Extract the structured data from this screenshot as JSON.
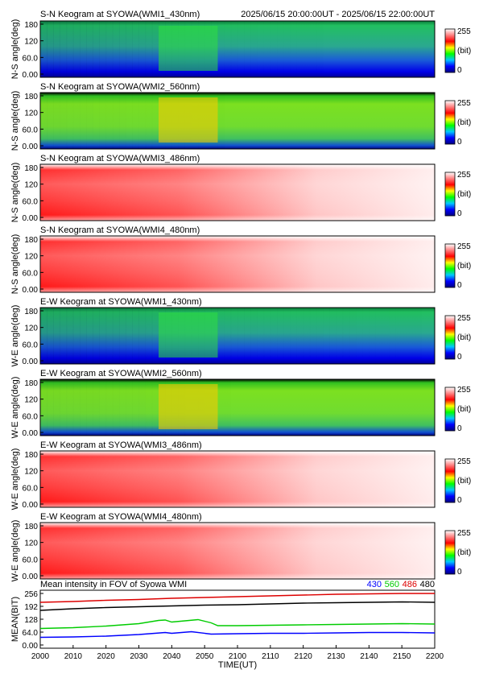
{
  "header": {
    "time_range": "2025/06/15 20:00:00UT - 2025/06/15 22:00:00UT"
  },
  "colors": {
    "scale": [
      "#000080",
      "#0000ff",
      "#00c8ff",
      "#00ff00",
      "#ffff00",
      "#ff0000",
      "#ff8080",
      "#ffffff"
    ],
    "series_430": "#0000ff",
    "series_560": "#00cc00",
    "series_486": "#dd0000",
    "series_480": "#000000"
  },
  "chart_data": [
    {
      "type": "heatmap",
      "title": "S-N Keogram at SYOWA(WMI1_430nm)",
      "ylabel": "N-S angle(deg)",
      "yticks": [
        "180",
        "120",
        "60.0",
        "0.00"
      ],
      "ylim": [
        0,
        180
      ],
      "colorbar": {
        "max": "255",
        "unit": "(bit)",
        "min": "0"
      },
      "profile": "blue",
      "level": [
        0.42,
        0.58,
        0.62
      ],
      "burst": 0.12
    },
    {
      "type": "heatmap",
      "title": "S-N Keogram at SYOWA(WMI2_560nm)",
      "ylabel": "N-S angle(deg)",
      "yticks": [
        "180",
        "120",
        "60.0",
        "0.00"
      ],
      "ylim": [
        0,
        180
      ],
      "colorbar": {
        "max": "255",
        "unit": "(bit)",
        "min": "0"
      },
      "profile": "green",
      "level": [
        0.56,
        0.6,
        0.6
      ],
      "burst": 0.1
    },
    {
      "type": "heatmap",
      "title": "S-N Keogram at SYOWA(WMI3_486nm)",
      "ylabel": "N-S angle(deg)",
      "yticks": [
        "180",
        "120",
        "60.0",
        "0.00"
      ],
      "ylim": [
        0,
        180
      ],
      "colorbar": {
        "max": "255",
        "unit": "(bit)",
        "min": "0"
      },
      "profile": "red",
      "level": [
        0.84,
        0.92,
        0.98
      ],
      "burst": 0.0
    },
    {
      "type": "heatmap",
      "title": "S-N Keogram at SYOWA(WMI4_480nm)",
      "ylabel": "N-S angle(deg)",
      "yticks": [
        "180",
        "120",
        "60.0",
        "0.00"
      ],
      "ylim": [
        0,
        180
      ],
      "colorbar": {
        "max": "255",
        "unit": "(bit)",
        "min": "0"
      },
      "profile": "red",
      "level": [
        0.86,
        0.93,
        0.98
      ],
      "burst": 0.0
    },
    {
      "type": "heatmap",
      "title": "E-W Keogram at SYOWA(WMI1_430nm)",
      "ylabel": "W-E angle(deg)",
      "yticks": [
        "180",
        "120",
        "60.0",
        "0.00"
      ],
      "ylim": [
        0,
        180
      ],
      "colorbar": {
        "max": "255",
        "unit": "(bit)",
        "min": "0"
      },
      "profile": "blue",
      "level": [
        0.42,
        0.56,
        0.6
      ],
      "burst": 0.12
    },
    {
      "type": "heatmap",
      "title": "E-W Keogram at SYOWA(WMI2_560nm)",
      "ylabel": "W-E angle(deg)",
      "yticks": [
        "180",
        "120",
        "60.0",
        "0.00"
      ],
      "ylim": [
        0,
        180
      ],
      "colorbar": {
        "max": "255",
        "unit": "(bit)",
        "min": "0"
      },
      "profile": "green",
      "level": [
        0.54,
        0.6,
        0.62
      ],
      "burst": 0.12
    },
    {
      "type": "heatmap",
      "title": "E-W Keogram at SYOWA(WMI3_486nm)",
      "ylabel": "W-E angle(deg)",
      "yticks": [
        "180",
        "120",
        "60.0",
        "0.00"
      ],
      "ylim": [
        0,
        180
      ],
      "colorbar": {
        "max": "255",
        "unit": "(bit)",
        "min": "0"
      },
      "profile": "red",
      "level": [
        0.8,
        0.9,
        0.97
      ],
      "burst": 0.0
    },
    {
      "type": "heatmap",
      "title": "E-W Keogram at SYOWA(WMI4_480nm)",
      "ylabel": "W-E angle(deg)",
      "yticks": [
        "180",
        "120",
        "60.0",
        "0.00"
      ],
      "ylim": [
        0,
        180
      ],
      "colorbar": {
        "max": "255",
        "unit": "(bit)",
        "min": "0"
      },
      "profile": "red",
      "level": [
        0.82,
        0.9,
        0.96
      ],
      "burst": 0.0
    },
    {
      "type": "line",
      "title": "Mean intensity in FOV of Syowa WMI",
      "ylabel": "MEAN(BIT)",
      "xlabel": "TIME(UT)",
      "yticks": [
        "256",
        "192",
        "128",
        "64.0",
        "0.00"
      ],
      "ylim": [
        0,
        256
      ],
      "x": [
        "2000",
        "2010",
        "2020",
        "2030",
        "2040",
        "2050",
        "2100",
        "2110",
        "2120",
        "2130",
        "2140",
        "2150",
        "2200"
      ],
      "legend": [
        "430",
        "560",
        "486",
        "480"
      ],
      "series": [
        {
          "name": "486",
          "color": "#dd0000",
          "points": [
            [
              0,
              212
            ],
            [
              10,
              216
            ],
            [
              20,
              222
            ],
            [
              30,
              226
            ],
            [
              40,
              232
            ],
            [
              50,
              236
            ],
            [
              60,
              240
            ],
            [
              70,
              244
            ],
            [
              80,
              248
            ],
            [
              90,
              252
            ],
            [
              100,
              254
            ],
            [
              110,
              256
            ],
            [
              120,
              256
            ]
          ]
        },
        {
          "name": "480",
          "color": "#000000",
          "points": [
            [
              0,
              172
            ],
            [
              10,
              180
            ],
            [
              20,
              186
            ],
            [
              30,
              190
            ],
            [
              40,
              194
            ],
            [
              50,
              198
            ],
            [
              60,
              200
            ],
            [
              70,
              204
            ],
            [
              80,
              208
            ],
            [
              90,
              210
            ],
            [
              100,
              212
            ],
            [
              110,
              214
            ],
            [
              120,
              212
            ]
          ]
        },
        {
          "name": "560",
          "color": "#00cc00",
          "points": [
            [
              0,
              82
            ],
            [
              10,
              86
            ],
            [
              20,
              94
            ],
            [
              30,
              106
            ],
            [
              36,
              122
            ],
            [
              38,
              124
            ],
            [
              40,
              114
            ],
            [
              44,
              120
            ],
            [
              48,
              126
            ],
            [
              52,
              110
            ],
            [
              54,
              96
            ],
            [
              60,
              96
            ],
            [
              70,
              98
            ],
            [
              80,
              100
            ],
            [
              90,
              102
            ],
            [
              100,
              104
            ],
            [
              110,
              106
            ],
            [
              120,
              104
            ]
          ]
        },
        {
          "name": "430",
          "color": "#0000ff",
          "points": [
            [
              0,
              38
            ],
            [
              10,
              40
            ],
            [
              20,
              44
            ],
            [
              30,
              52
            ],
            [
              38,
              62
            ],
            [
              40,
              58
            ],
            [
              46,
              66
            ],
            [
              52,
              54
            ],
            [
              60,
              56
            ],
            [
              70,
              58
            ],
            [
              80,
              58
            ],
            [
              90,
              60
            ],
            [
              100,
              62
            ],
            [
              110,
              62
            ],
            [
              120,
              60
            ]
          ]
        }
      ]
    }
  ]
}
